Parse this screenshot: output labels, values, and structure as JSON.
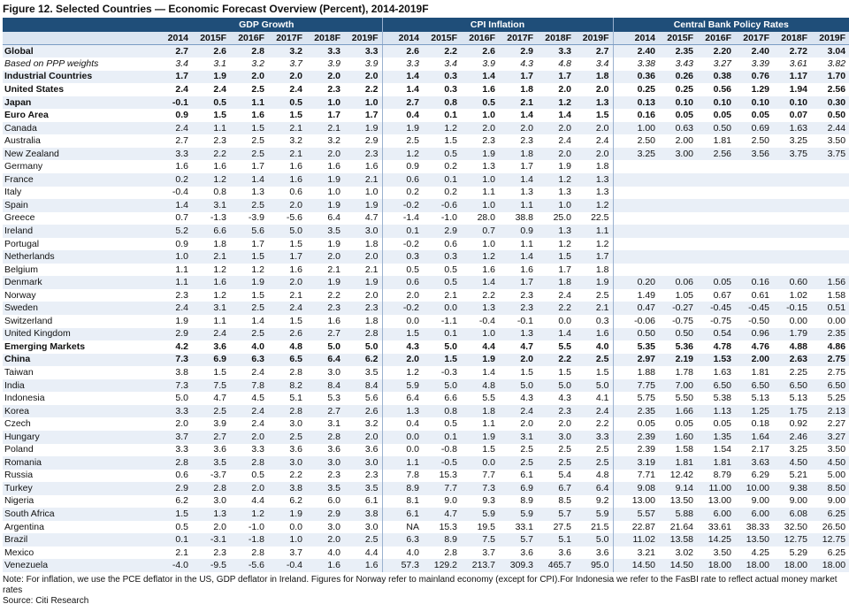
{
  "title": "Figure 12. Selected Countries — Economic Forecast Overview (Percent), 2014-2019F",
  "groups": [
    "GDP Growth",
    "CPI Inflation",
    "Central Bank Policy Rates"
  ],
  "years": [
    "2014",
    "2015F",
    "2016F",
    "2017F",
    "2018F",
    "2019F"
  ],
  "rows": [
    {
      "label": "Global",
      "style": "bold",
      "v": [
        "2.7",
        "2.6",
        "2.8",
        "3.2",
        "3.3",
        "3.3",
        "2.6",
        "2.2",
        "2.6",
        "2.9",
        "3.3",
        "2.7",
        "2.40",
        "2.35",
        "2.20",
        "2.40",
        "2.72",
        "3.04"
      ]
    },
    {
      "label": "Based on PPP weights",
      "style": "ital",
      "v": [
        "3.4",
        "3.1",
        "3.2",
        "3.7",
        "3.9",
        "3.9",
        "3.3",
        "3.4",
        "3.9",
        "4.3",
        "4.8",
        "3.4",
        "3.38",
        "3.43",
        "3.27",
        "3.39",
        "3.61",
        "3.82"
      ]
    },
    {
      "label": "Industrial Countries",
      "style": "bold",
      "v": [
        "1.7",
        "1.9",
        "2.0",
        "2.0",
        "2.0",
        "2.0",
        "1.4",
        "0.3",
        "1.4",
        "1.7",
        "1.7",
        "1.8",
        "0.36",
        "0.26",
        "0.38",
        "0.76",
        "1.17",
        "1.70"
      ]
    },
    {
      "label": "United States",
      "style": "bold",
      "v": [
        "2.4",
        "2.4",
        "2.5",
        "2.4",
        "2.3",
        "2.2",
        "1.4",
        "0.3",
        "1.6",
        "1.8",
        "2.0",
        "2.0",
        "0.25",
        "0.25",
        "0.56",
        "1.29",
        "1.94",
        "2.56"
      ]
    },
    {
      "label": "Japan",
      "style": "bold",
      "v": [
        "-0.1",
        "0.5",
        "1.1",
        "0.5",
        "1.0",
        "1.0",
        "2.7",
        "0.8",
        "0.5",
        "2.1",
        "1.2",
        "1.3",
        "0.13",
        "0.10",
        "0.10",
        "0.10",
        "0.10",
        "0.30"
      ]
    },
    {
      "label": "Euro Area",
      "style": "bold",
      "v": [
        "0.9",
        "1.5",
        "1.6",
        "1.5",
        "1.7",
        "1.7",
        "0.4",
        "0.1",
        "1.0",
        "1.4",
        "1.4",
        "1.5",
        "0.16",
        "0.05",
        "0.05",
        "0.05",
        "0.07",
        "0.50"
      ]
    },
    {
      "label": "Canada",
      "style": "",
      "v": [
        "2.4",
        "1.1",
        "1.5",
        "2.1",
        "2.1",
        "1.9",
        "1.9",
        "1.2",
        "2.0",
        "2.0",
        "2.0",
        "2.0",
        "1.00",
        "0.63",
        "0.50",
        "0.69",
        "1.63",
        "2.44"
      ]
    },
    {
      "label": "Australia",
      "style": "",
      "v": [
        "2.7",
        "2.3",
        "2.5",
        "3.2",
        "3.2",
        "2.9",
        "2.5",
        "1.5",
        "2.3",
        "2.3",
        "2.4",
        "2.4",
        "2.50",
        "2.00",
        "1.81",
        "2.50",
        "3.25",
        "3.50"
      ]
    },
    {
      "label": "New Zealand",
      "style": "",
      "v": [
        "3.3",
        "2.2",
        "2.5",
        "2.1",
        "2.0",
        "2.3",
        "1.2",
        "0.5",
        "1.9",
        "1.8",
        "2.0",
        "2.0",
        "3.25",
        "3.00",
        "2.56",
        "3.56",
        "3.75",
        "3.75"
      ]
    },
    {
      "label": "Germany",
      "style": "",
      "v": [
        "1.6",
        "1.6",
        "1.7",
        "1.6",
        "1.6",
        "1.6",
        "0.9",
        "0.2",
        "1.3",
        "1.7",
        "1.9",
        "1.8",
        "",
        "",
        "",
        "",
        "",
        ""
      ]
    },
    {
      "label": "France",
      "style": "",
      "v": [
        "0.2",
        "1.2",
        "1.4",
        "1.6",
        "1.9",
        "2.1",
        "0.6",
        "0.1",
        "1.0",
        "1.4",
        "1.2",
        "1.3",
        "",
        "",
        "",
        "",
        "",
        ""
      ]
    },
    {
      "label": "Italy",
      "style": "",
      "v": [
        "-0.4",
        "0.8",
        "1.3",
        "0.6",
        "1.0",
        "1.0",
        "0.2",
        "0.2",
        "1.1",
        "1.3",
        "1.3",
        "1.3",
        "",
        "",
        "",
        "",
        "",
        ""
      ]
    },
    {
      "label": "Spain",
      "style": "",
      "v": [
        "1.4",
        "3.1",
        "2.5",
        "2.0",
        "1.9",
        "1.9",
        "-0.2",
        "-0.6",
        "1.0",
        "1.1",
        "1.0",
        "1.2",
        "",
        "",
        "",
        "",
        "",
        ""
      ]
    },
    {
      "label": "Greece",
      "style": "",
      "v": [
        "0.7",
        "-1.3",
        "-3.9",
        "-5.6",
        "6.4",
        "4.7",
        "-1.4",
        "-1.0",
        "28.0",
        "38.8",
        "25.0",
        "22.5",
        "",
        "",
        "",
        "",
        "",
        ""
      ]
    },
    {
      "label": "Ireland",
      "style": "",
      "v": [
        "5.2",
        "6.6",
        "5.6",
        "5.0",
        "3.5",
        "3.0",
        "0.1",
        "2.9",
        "0.7",
        "0.9",
        "1.3",
        "1.1",
        "",
        "",
        "",
        "",
        "",
        ""
      ]
    },
    {
      "label": "Portugal",
      "style": "",
      "v": [
        "0.9",
        "1.8",
        "1.7",
        "1.5",
        "1.9",
        "1.8",
        "-0.2",
        "0.6",
        "1.0",
        "1.1",
        "1.2",
        "1.2",
        "",
        "",
        "",
        "",
        "",
        ""
      ]
    },
    {
      "label": "Netherlands",
      "style": "",
      "v": [
        "1.0",
        "2.1",
        "1.5",
        "1.7",
        "2.0",
        "2.0",
        "0.3",
        "0.3",
        "1.2",
        "1.4",
        "1.5",
        "1.7",
        "",
        "",
        "",
        "",
        "",
        ""
      ]
    },
    {
      "label": "Belgium",
      "style": "",
      "v": [
        "1.1",
        "1.2",
        "1.2",
        "1.6",
        "2.1",
        "2.1",
        "0.5",
        "0.5",
        "1.6",
        "1.6",
        "1.7",
        "1.8",
        "",
        "",
        "",
        "",
        "",
        ""
      ]
    },
    {
      "label": "Denmark",
      "style": "",
      "v": [
        "1.1",
        "1.6",
        "1.9",
        "2.0",
        "1.9",
        "1.9",
        "0.6",
        "0.5",
        "1.4",
        "1.7",
        "1.8",
        "1.9",
        "0.20",
        "0.06",
        "0.05",
        "0.16",
        "0.60",
        "1.56"
      ]
    },
    {
      "label": "Norway",
      "style": "",
      "v": [
        "2.3",
        "1.2",
        "1.5",
        "2.1",
        "2.2",
        "2.0",
        "2.0",
        "2.1",
        "2.2",
        "2.3",
        "2.4",
        "2.5",
        "1.49",
        "1.05",
        "0.67",
        "0.61",
        "1.02",
        "1.58"
      ]
    },
    {
      "label": "Sweden",
      "style": "",
      "v": [
        "2.4",
        "3.1",
        "2.5",
        "2.4",
        "2.3",
        "2.3",
        "-0.2",
        "0.0",
        "1.3",
        "2.3",
        "2.2",
        "2.1",
        "0.47",
        "-0.27",
        "-0.45",
        "-0.45",
        "-0.15",
        "0.51"
      ]
    },
    {
      "label": "Switzerland",
      "style": "",
      "v": [
        "1.9",
        "1.1",
        "1.4",
        "1.5",
        "1.6",
        "1.8",
        "0.0",
        "-1.1",
        "-0.4",
        "-0.1",
        "0.0",
        "0.3",
        "-0.06",
        "-0.75",
        "-0.75",
        "-0.50",
        "0.00",
        "0.00"
      ]
    },
    {
      "label": "United Kingdom",
      "style": "",
      "v": [
        "2.9",
        "2.4",
        "2.5",
        "2.6",
        "2.7",
        "2.8",
        "1.5",
        "0.1",
        "1.0",
        "1.3",
        "1.4",
        "1.6",
        "0.50",
        "0.50",
        "0.54",
        "0.96",
        "1.79",
        "2.35"
      ]
    },
    {
      "label": "Emerging Markets",
      "style": "bold",
      "v": [
        "4.2",
        "3.6",
        "4.0",
        "4.8",
        "5.0",
        "5.0",
        "4.3",
        "5.0",
        "4.4",
        "4.7",
        "5.5",
        "4.0",
        "5.35",
        "5.36",
        "4.78",
        "4.76",
        "4.88",
        "4.86"
      ]
    },
    {
      "label": "China",
      "style": "bold",
      "v": [
        "7.3",
        "6.9",
        "6.3",
        "6.5",
        "6.4",
        "6.2",
        "2.0",
        "1.5",
        "1.9",
        "2.0",
        "2.2",
        "2.5",
        "2.97",
        "2.19",
        "1.53",
        "2.00",
        "2.63",
        "2.75"
      ]
    },
    {
      "label": "Taiwan",
      "style": "",
      "v": [
        "3.8",
        "1.5",
        "2.4",
        "2.8",
        "3.0",
        "3.5",
        "1.2",
        "-0.3",
        "1.4",
        "1.5",
        "1.5",
        "1.5",
        "1.88",
        "1.78",
        "1.63",
        "1.81",
        "2.25",
        "2.75"
      ]
    },
    {
      "label": "India",
      "style": "",
      "v": [
        "7.3",
        "7.5",
        "7.8",
        "8.2",
        "8.4",
        "8.4",
        "5.9",
        "5.0",
        "4.8",
        "5.0",
        "5.0",
        "5.0",
        "7.75",
        "7.00",
        "6.50",
        "6.50",
        "6.50",
        "6.50"
      ]
    },
    {
      "label": "Indonesia",
      "style": "",
      "v": [
        "5.0",
        "4.7",
        "4.5",
        "5.1",
        "5.3",
        "5.6",
        "6.4",
        "6.6",
        "5.5",
        "4.3",
        "4.3",
        "4.1",
        "5.75",
        "5.50",
        "5.38",
        "5.13",
        "5.13",
        "5.25"
      ]
    },
    {
      "label": "Korea",
      "style": "",
      "v": [
        "3.3",
        "2.5",
        "2.4",
        "2.8",
        "2.7",
        "2.6",
        "1.3",
        "0.8",
        "1.8",
        "2.4",
        "2.3",
        "2.4",
        "2.35",
        "1.66",
        "1.13",
        "1.25",
        "1.75",
        "2.13"
      ]
    },
    {
      "label": "Czech",
      "style": "",
      "v": [
        "2.0",
        "3.9",
        "2.4",
        "3.0",
        "3.1",
        "3.2",
        "0.4",
        "0.5",
        "1.1",
        "2.0",
        "2.0",
        "2.2",
        "0.05",
        "0.05",
        "0.05",
        "0.18",
        "0.92",
        "2.27"
      ]
    },
    {
      "label": "Hungary",
      "style": "",
      "v": [
        "3.7",
        "2.7",
        "2.0",
        "2.5",
        "2.8",
        "2.0",
        "0.0",
        "0.1",
        "1.9",
        "3.1",
        "3.0",
        "3.3",
        "2.39",
        "1.60",
        "1.35",
        "1.64",
        "2.46",
        "3.27"
      ]
    },
    {
      "label": "Poland",
      "style": "",
      "v": [
        "3.3",
        "3.6",
        "3.3",
        "3.6",
        "3.6",
        "3.6",
        "0.0",
        "-0.8",
        "1.5",
        "2.5",
        "2.5",
        "2.5",
        "2.39",
        "1.58",
        "1.54",
        "2.17",
        "3.25",
        "3.50"
      ]
    },
    {
      "label": "Romania",
      "style": "",
      "v": [
        "2.8",
        "3.5",
        "2.8",
        "3.0",
        "3.0",
        "3.0",
        "1.1",
        "-0.5",
        "0.0",
        "2.5",
        "2.5",
        "2.5",
        "3.19",
        "1.81",
        "1.81",
        "3.63",
        "4.50",
        "4.50"
      ]
    },
    {
      "label": "Russia",
      "style": "",
      "v": [
        "0.6",
        "-3.7",
        "0.5",
        "2.2",
        "2.3",
        "2.3",
        "7.8",
        "15.3",
        "7.7",
        "6.1",
        "5.4",
        "4.8",
        "7.71",
        "12.42",
        "8.79",
        "6.29",
        "5.21",
        "5.00"
      ]
    },
    {
      "label": "Turkey",
      "style": "",
      "v": [
        "2.9",
        "2.8",
        "2.0",
        "3.8",
        "3.5",
        "3.5",
        "8.9",
        "7.7",
        "7.3",
        "6.9",
        "6.7",
        "6.4",
        "9.08",
        "9.14",
        "11.00",
        "10.00",
        "9.38",
        "8.50"
      ]
    },
    {
      "label": "Nigeria",
      "style": "",
      "v": [
        "6.2",
        "3.0",
        "4.4",
        "6.2",
        "6.0",
        "6.1",
        "8.1",
        "9.0",
        "9.3",
        "8.9",
        "8.5",
        "9.2",
        "13.00",
        "13.50",
        "13.00",
        "9.00",
        "9.00",
        "9.00"
      ]
    },
    {
      "label": "South Africa",
      "style": "",
      "v": [
        "1.5",
        "1.3",
        "1.2",
        "1.9",
        "2.9",
        "3.8",
        "6.1",
        "4.7",
        "5.9",
        "5.9",
        "5.7",
        "5.9",
        "5.57",
        "5.88",
        "6.00",
        "6.00",
        "6.08",
        "6.25"
      ]
    },
    {
      "label": "Argentina",
      "style": "",
      "v": [
        "0.5",
        "2.0",
        "-1.0",
        "0.0",
        "3.0",
        "3.0",
        "NA",
        "15.3",
        "19.5",
        "33.1",
        "27.5",
        "21.5",
        "22.87",
        "21.64",
        "33.61",
        "38.33",
        "32.50",
        "26.50"
      ]
    },
    {
      "label": "Brazil",
      "style": "",
      "v": [
        "0.1",
        "-3.1",
        "-1.8",
        "1.0",
        "2.0",
        "2.5",
        "6.3",
        "8.9",
        "7.5",
        "5.7",
        "5.1",
        "5.0",
        "11.02",
        "13.58",
        "14.25",
        "13.50",
        "12.75",
        "12.75"
      ]
    },
    {
      "label": "Mexico",
      "style": "",
      "v": [
        "2.1",
        "2.3",
        "2.8",
        "3.7",
        "4.0",
        "4.4",
        "4.0",
        "2.8",
        "3.7",
        "3.6",
        "3.6",
        "3.6",
        "3.21",
        "3.02",
        "3.50",
        "4.25",
        "5.29",
        "6.25"
      ]
    },
    {
      "label": "Venezuela",
      "style": "",
      "v": [
        "-4.0",
        "-9.5",
        "-5.6",
        "-0.4",
        "1.6",
        "1.6",
        "57.3",
        "129.2",
        "213.7",
        "309.3",
        "465.7",
        "95.0",
        "14.50",
        "14.50",
        "18.00",
        "18.00",
        "18.00",
        "18.00"
      ]
    }
  ],
  "notes": [
    "Note: For inflation, we use the PCE deflator in the US, GDP deflator in Ireland. Figures for Norway refer to mainland economy (except for CPI).For Indonesia we refer to the FasBI rate to reflect actual money market rates",
    "Source: Citi Research"
  ]
}
